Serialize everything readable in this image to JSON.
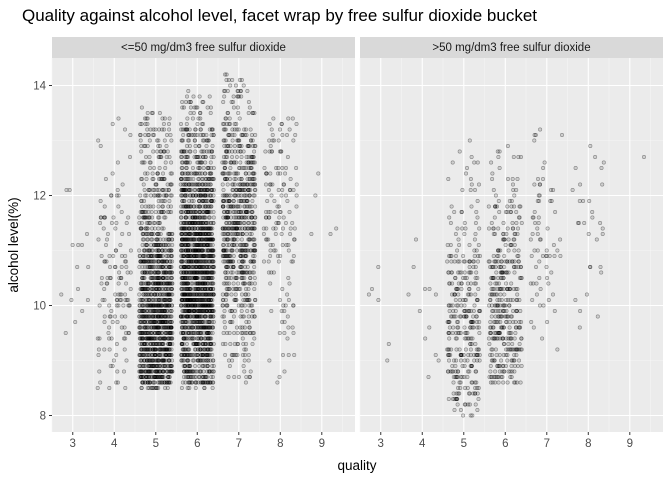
{
  "chart_data": {
    "type": "scatter",
    "title": "Quality against alcohol level, facet wrap by free sulfur dioxide bucket",
    "xlabel": "quality",
    "ylabel": "alcohol level(%)",
    "xlim": [
      2.5,
      9.8
    ],
    "ylim": [
      7.7,
      14.5
    ],
    "x_ticks": [
      3,
      4,
      5,
      6,
      7,
      8,
      9
    ],
    "y_ticks": [
      8,
      10,
      12,
      14
    ],
    "grid": true,
    "jitter_width": 0.4,
    "point_color": "#000000",
    "point_alpha": 0.3,
    "panel_background": "#ebebeb",
    "strip_background": "#d9d9d9",
    "facets": [
      {
        "label": "<=50 mg/dm3 free sulfur dioxide",
        "groups": [
          {
            "quality": 3,
            "count": 15,
            "alcohol_min": 8.5,
            "alcohol_max": 12.6,
            "alcohol_center": 10.8
          },
          {
            "quality": 4,
            "count": 140,
            "alcohol_min": 8.4,
            "alcohol_max": 13.5,
            "alcohol_center": 10.5
          },
          {
            "quality": 5,
            "count": 1350,
            "alcohol_min": 8.5,
            "alcohol_max": 13.6,
            "alcohol_center": 9.6
          },
          {
            "quality": 6,
            "count": 1800,
            "alcohol_min": 8.5,
            "alcohol_max": 14.0,
            "alcohol_center": 10.6
          },
          {
            "quality": 7,
            "count": 760,
            "alcohol_min": 8.6,
            "alcohol_max": 14.2,
            "alcohol_center": 11.4
          },
          {
            "quality": 8,
            "count": 150,
            "alcohol_min": 8.5,
            "alcohol_max": 13.4,
            "alcohol_center": 11.8
          },
          {
            "quality": 9,
            "count": 5,
            "alcohol_min": 10.4,
            "alcohol_max": 12.9,
            "alcohol_center": 12.0
          }
        ]
      },
      {
        "label": ">50 mg/dm3 free sulfur dioxide",
        "groups": [
          {
            "quality": 3,
            "count": 6,
            "alcohol_min": 8.0,
            "alcohol_max": 11.0,
            "alcohol_center": 10.0
          },
          {
            "quality": 4,
            "count": 12,
            "alcohol_min": 8.6,
            "alcohol_max": 11.5,
            "alcohol_center": 9.5
          },
          {
            "quality": 5,
            "count": 320,
            "alcohol_min": 8.0,
            "alcohol_max": 13.5,
            "alcohol_center": 9.5
          },
          {
            "quality": 6,
            "count": 380,
            "alcohol_min": 8.5,
            "alcohol_max": 13.1,
            "alcohol_center": 9.8
          },
          {
            "quality": 7,
            "count": 70,
            "alcohol_min": 9.0,
            "alcohol_max": 13.3,
            "alcohol_center": 11.0
          },
          {
            "quality": 8,
            "count": 30,
            "alcohol_min": 8.9,
            "alcohol_max": 13.0,
            "alcohol_center": 11.8
          },
          {
            "quality": 9,
            "count": 1,
            "alcohol_min": 12.7,
            "alcohol_max": 12.7,
            "alcohol_center": 12.7
          }
        ]
      }
    ]
  }
}
